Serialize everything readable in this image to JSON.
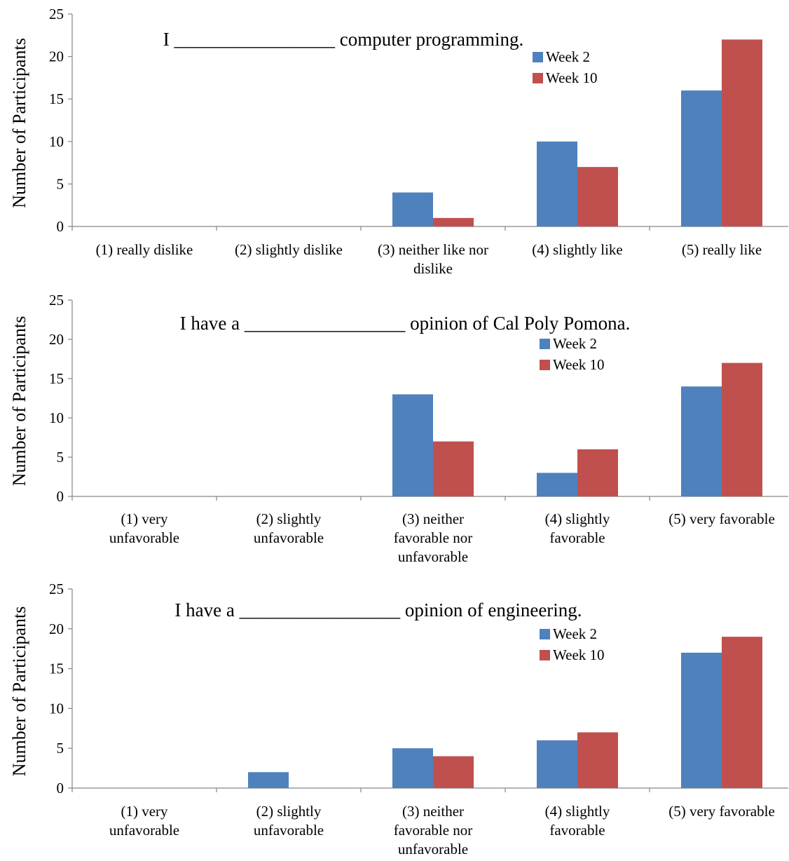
{
  "colors": {
    "week2": "#4f81bd",
    "week10": "#c0504d",
    "axis": "#868686"
  },
  "chart_data": [
    {
      "type": "bar",
      "title": "I _________________ computer programming.",
      "ylabel": "Number of Participants",
      "ylim": [
        0,
        25
      ],
      "yticks": [
        0,
        5,
        10,
        15,
        20,
        25
      ],
      "legend_position": "top-right",
      "categories": [
        [
          "(1) really dislike"
        ],
        [
          "(2) slightly dislike"
        ],
        [
          "(3) neither like nor",
          "dislike"
        ],
        [
          "(4) slightly like"
        ],
        [
          "(5) really like"
        ]
      ],
      "series": [
        {
          "name": "Week 2",
          "values": [
            0,
            0,
            4,
            10,
            16
          ]
        },
        {
          "name": "Week 10",
          "values": [
            0,
            0,
            1,
            7,
            22
          ]
        }
      ]
    },
    {
      "type": "bar",
      "title": "I have a _________________ opinion of Cal Poly Pomona.",
      "ylabel": "Number of Participants",
      "ylim": [
        0,
        25
      ],
      "yticks": [
        0,
        5,
        10,
        15,
        20,
        25
      ],
      "legend_position": "top-right",
      "categories": [
        [
          "(1) very",
          "unfavorable"
        ],
        [
          "(2) slightly",
          "unfavorable"
        ],
        [
          "(3) neither",
          "favorable nor",
          "unfavorable"
        ],
        [
          "(4) slightly",
          "favorable"
        ],
        [
          "(5) very favorable"
        ]
      ],
      "series": [
        {
          "name": "Week 2",
          "values": [
            0,
            0,
            13,
            3,
            14
          ]
        },
        {
          "name": "Week 10",
          "values": [
            0,
            0,
            7,
            6,
            17
          ]
        }
      ]
    },
    {
      "type": "bar",
      "title": "I have a _________________ opinion of engineering.",
      "ylabel": "Number of Participants",
      "ylim": [
        0,
        25
      ],
      "yticks": [
        0,
        5,
        10,
        15,
        20,
        25
      ],
      "legend_position": "top-right",
      "categories": [
        [
          "(1) very",
          "unfavorable"
        ],
        [
          "(2) slightly",
          "unfavorable"
        ],
        [
          "(3) neither",
          "favorable nor",
          "unfavorable"
        ],
        [
          "(4) slightly",
          "favorable"
        ],
        [
          "(5) very favorable"
        ]
      ],
      "series": [
        {
          "name": "Week 2",
          "values": [
            0,
            2,
            5,
            6,
            17
          ]
        },
        {
          "name": "Week 10",
          "values": [
            0,
            0,
            4,
            7,
            19
          ]
        }
      ]
    }
  ]
}
